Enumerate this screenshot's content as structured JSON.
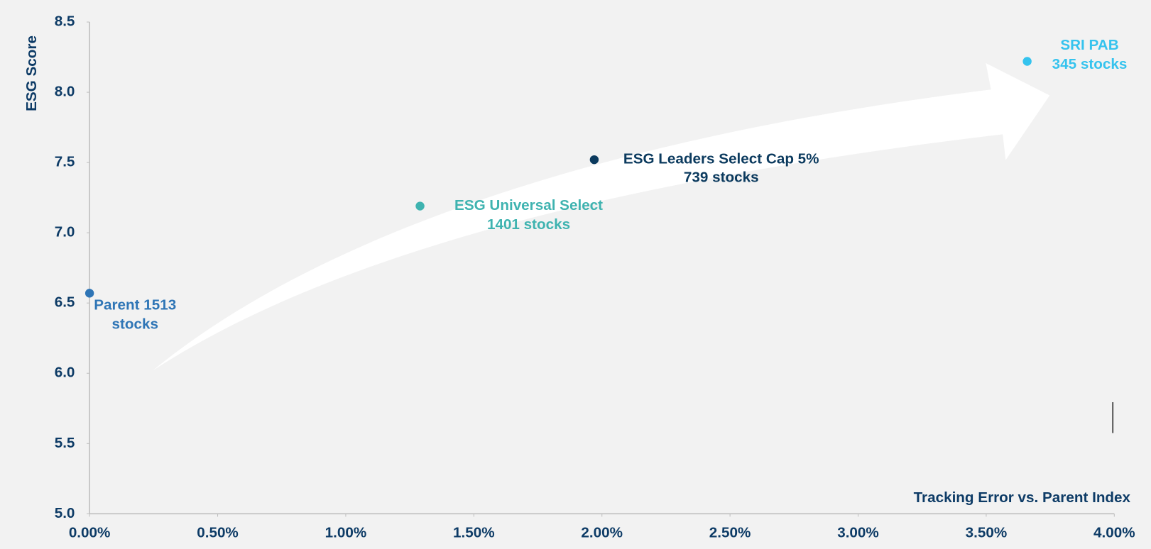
{
  "chart_data": {
    "type": "scatter",
    "x_label": "Tracking Error vs. Parent Index",
    "y_label": "ESG Score",
    "xlim": [
      0,
      4
    ],
    "ylim": [
      5,
      8.5
    ],
    "xticks": [
      {
        "value": 0,
        "label": "0.00%"
      },
      {
        "value": 0.5,
        "label": "0.50%"
      },
      {
        "value": 1,
        "label": "1.00%"
      },
      {
        "value": 1.5,
        "label": "1.50%"
      },
      {
        "value": 2,
        "label": "2.00%"
      },
      {
        "value": 2.5,
        "label": "2.50%"
      },
      {
        "value": 3,
        "label": "3.00%"
      },
      {
        "value": 3.5,
        "label": "3.50%"
      },
      {
        "value": 4,
        "label": "4.00%"
      }
    ],
    "yticks": [
      {
        "value": 5,
        "label": "5.0"
      },
      {
        "value": 5.5,
        "label": "5.5"
      },
      {
        "value": 6,
        "label": "6.0"
      },
      {
        "value": 6.5,
        "label": "6.5"
      },
      {
        "value": 7,
        "label": "7.0"
      },
      {
        "value": 7.5,
        "label": "7.5"
      },
      {
        "value": 8,
        "label": "8.0"
      },
      {
        "value": 8.5,
        "label": "8.5"
      }
    ],
    "points": [
      {
        "label_lines": [
          "Parent 1513",
          "stocks"
        ],
        "color": "#2e75b6",
        "x": 0,
        "y": 6.57
      },
      {
        "label_lines": [
          "ESG Universal Select",
          "1401 stocks"
        ],
        "color": "#3fb3b0",
        "x": 1.29,
        "y": 7.19
      },
      {
        "label_lines": [
          "ESG Leaders Select Cap 5%",
          "739 stocks"
        ],
        "color": "#0b3a5e",
        "x": 1.97,
        "y": 7.52
      },
      {
        "label_lines": [
          "SRI PAB",
          "345 stocks"
        ],
        "color": "#35c3ee",
        "x": 3.66,
        "y": 8.22
      }
    ]
  }
}
